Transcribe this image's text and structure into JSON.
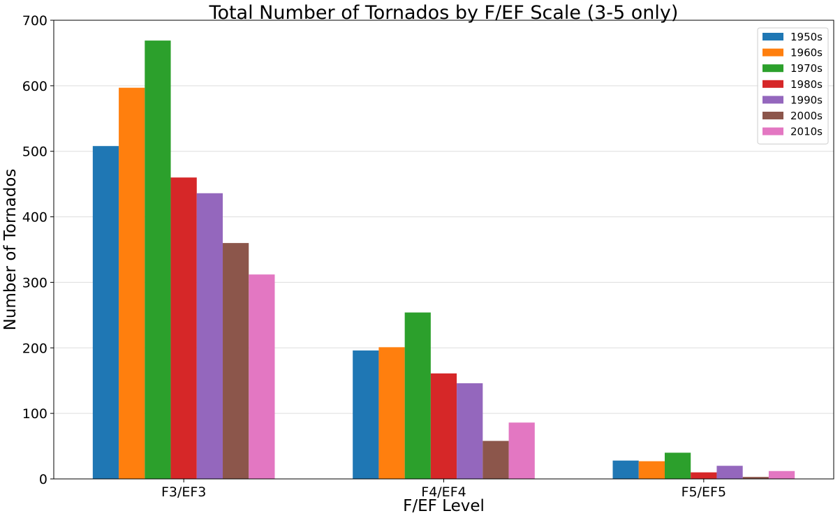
{
  "chart_data": {
    "type": "bar",
    "title": "Total Number of Tornados by F/EF Scale (3-5 only)",
    "xlabel": "F/EF Level",
    "ylabel": "Number of Tornados",
    "categories": [
      "F3/EF3",
      "F4/EF4",
      "F5/EF5"
    ],
    "ylim": [
      0,
      700
    ],
    "yticks": [
      0,
      100,
      200,
      300,
      400,
      500,
      600,
      700
    ],
    "grid": "horizontal",
    "legend_position": "top-right",
    "series": [
      {
        "name": "1950s",
        "color": "#1f77b4",
        "values": [
          508,
          196,
          28
        ]
      },
      {
        "name": "1960s",
        "color": "#ff7f0e",
        "values": [
          597,
          201,
          27
        ]
      },
      {
        "name": "1970s",
        "color": "#2ca02c",
        "values": [
          669,
          254,
          40
        ]
      },
      {
        "name": "1980s",
        "color": "#d62728",
        "values": [
          460,
          161,
          10
        ]
      },
      {
        "name": "1990s",
        "color": "#9467bd",
        "values": [
          436,
          146,
          20
        ]
      },
      {
        "name": "2000s",
        "color": "#8c564b",
        "values": [
          360,
          58,
          3
        ]
      },
      {
        "name": "2010s",
        "color": "#e377c2",
        "values": [
          312,
          86,
          12
        ]
      }
    ]
  }
}
